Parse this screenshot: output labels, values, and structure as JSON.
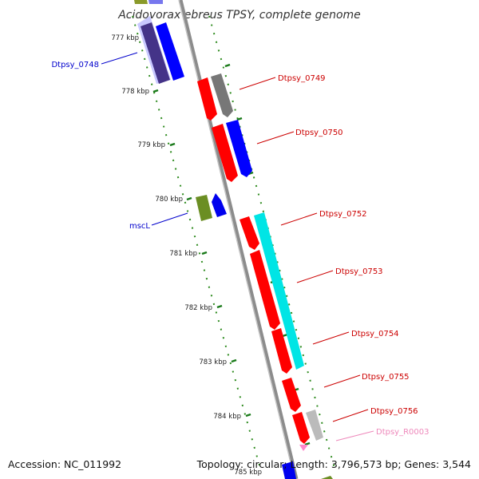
{
  "title": "Acidovorax ebreus TPSY, complete genome",
  "footer": {
    "accession": "Accession: NC_011992",
    "summary": "Topology: circular; Length: 3,796,573 bp; Genes: 3,544"
  },
  "ticks": [
    {
      "label": "777 kbp"
    },
    {
      "label": "778 kbp"
    },
    {
      "label": "779 kbp"
    },
    {
      "label": "780 kbp"
    },
    {
      "label": "781 kbp"
    },
    {
      "label": "782 kbp"
    },
    {
      "label": "783 kbp"
    },
    {
      "label": "784 kbp"
    },
    {
      "label": "785 kbp"
    }
  ],
  "gene_labels": [
    {
      "name": "Dtpsy_0748",
      "color": "#0000cc"
    },
    {
      "name": "Dtpsy_0749",
      "color": "#cc0000"
    },
    {
      "name": "Dtpsy_0750",
      "color": "#cc0000"
    },
    {
      "name": "mscL",
      "color": "#0000cc"
    },
    {
      "name": "Dtpsy_0752",
      "color": "#cc0000"
    },
    {
      "name": "Dtpsy_0753",
      "color": "#cc0000"
    },
    {
      "name": "Dtpsy_0754",
      "color": "#cc0000"
    },
    {
      "name": "Dtpsy_0755",
      "color": "#cc0000"
    },
    {
      "name": "Dtpsy_0756",
      "color": "#cc0000"
    },
    {
      "name": "Dtpsy_R0003",
      "color": "#ee88bb"
    }
  ],
  "colors": {
    "backbone": "#8c8c8c",
    "tick_dots": "#2e8b1e",
    "cds": "#ff0000",
    "gene_blue": "#0000ff",
    "gene_cyan": "#00e5e5",
    "gene_gray": "#777777",
    "gene_olive": "#6b8e23",
    "trna": "#ff88cc"
  }
}
